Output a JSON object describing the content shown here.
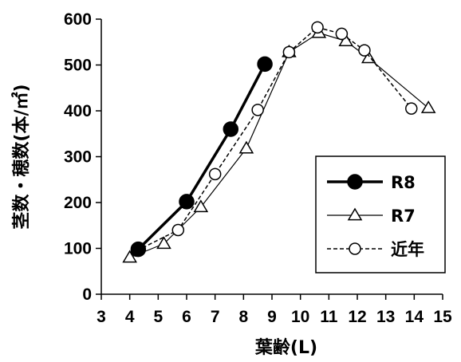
{
  "chart_data": {
    "type": "line",
    "xlabel": "葉齢(L)",
    "ylabel": "茎数・穂数(本/㎡)",
    "xlim": [
      3,
      15
    ],
    "ylim": [
      0,
      600
    ],
    "xticks": [
      "3",
      "4",
      "5",
      "6",
      "7",
      "8",
      "9",
      "10",
      "11",
      "12",
      "13",
      "14",
      "15"
    ],
    "yticks": [
      "0",
      "100",
      "200",
      "300",
      "400",
      "500",
      "600"
    ],
    "grid": false,
    "legend_position": "right-middle",
    "series": [
      {
        "name": "R8",
        "marker": "filled-circle",
        "line": "solid-thick",
        "color": "#000000",
        "points": [
          [
            4.3,
            98
          ],
          [
            6.0,
            202
          ],
          [
            7.55,
            360
          ],
          [
            8.75,
            502
          ]
        ]
      },
      {
        "name": "R7",
        "marker": "open-triangle",
        "line": "solid-thin",
        "color": "#000000",
        "points": [
          [
            4.0,
            80
          ],
          [
            5.2,
            110
          ],
          [
            6.5,
            190
          ],
          [
            8.1,
            318
          ],
          [
            9.6,
            528
          ],
          [
            10.65,
            570
          ],
          [
            11.6,
            552
          ],
          [
            12.4,
            515
          ],
          [
            14.5,
            406
          ]
        ]
      },
      {
        "name": "近年",
        "marker": "open-circle",
        "line": "dashed",
        "color": "#000000",
        "points": [
          [
            4.25,
            95
          ],
          [
            5.7,
            140
          ],
          [
            7.0,
            262
          ],
          [
            8.5,
            402
          ],
          [
            9.6,
            528
          ],
          [
            10.6,
            582
          ],
          [
            11.45,
            568
          ],
          [
            12.25,
            532
          ],
          [
            13.9,
            405
          ]
        ]
      }
    ]
  }
}
